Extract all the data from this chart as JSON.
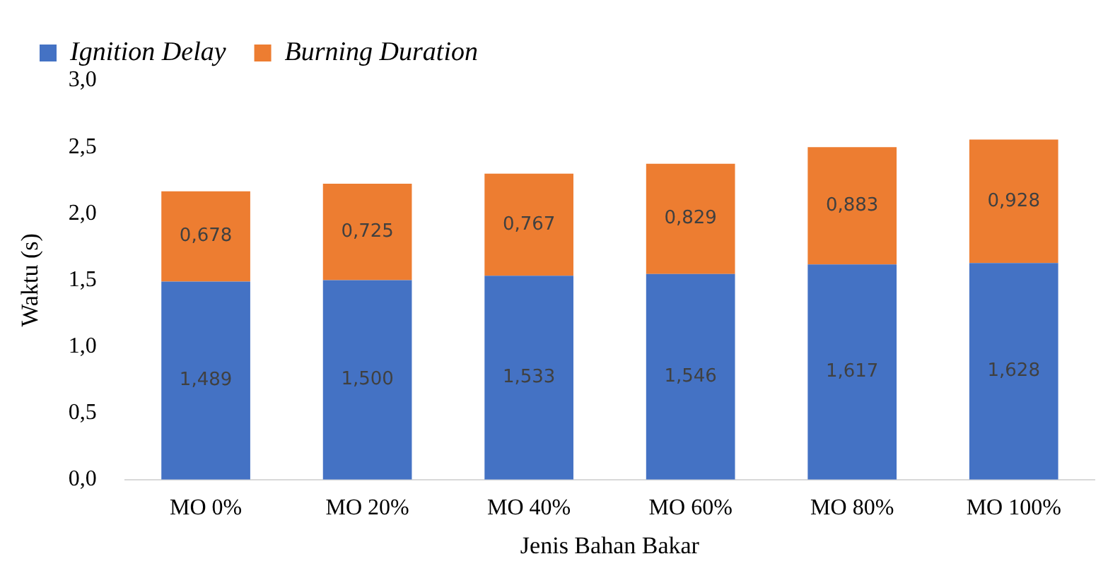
{
  "chart_data": {
    "type": "bar",
    "stacked": true,
    "xlabel": "Jenis Bahan Bakar",
    "ylabel": "Waktu (s)",
    "categories": [
      "MO 0%",
      "MO 20%",
      "MO 40%",
      "MO 60%",
      "MO 80%",
      "MO 100%"
    ],
    "series": [
      {
        "name": "Ignition Delay",
        "color": "#4472c4",
        "values": [
          1.489,
          1.5,
          1.533,
          1.546,
          1.617,
          1.628
        ],
        "value_labels": [
          "1,489",
          "1,500",
          "1,533",
          "1,546",
          "1,617",
          "1,628"
        ]
      },
      {
        "name": "Burning Duration",
        "color": "#ed7d31",
        "values": [
          0.678,
          0.725,
          0.767,
          0.829,
          0.883,
          0.928
        ],
        "value_labels": [
          "0,678",
          "0,725",
          "0,767",
          "0,829",
          "0,883",
          "0,928"
        ]
      }
    ],
    "ylim": [
      0,
      3
    ],
    "yticks": [
      {
        "value": 0,
        "label": "0,0"
      },
      {
        "value": 0.5,
        "label": "0,5"
      },
      {
        "value": 1,
        "label": "1,0"
      },
      {
        "value": 1.5,
        "label": "1,5"
      },
      {
        "value": 2,
        "label": "2,0"
      },
      {
        "value": 2.5,
        "label": "2,5"
      },
      {
        "value": 3,
        "label": "3,0"
      }
    ],
    "grid": false,
    "legend": "top left"
  }
}
